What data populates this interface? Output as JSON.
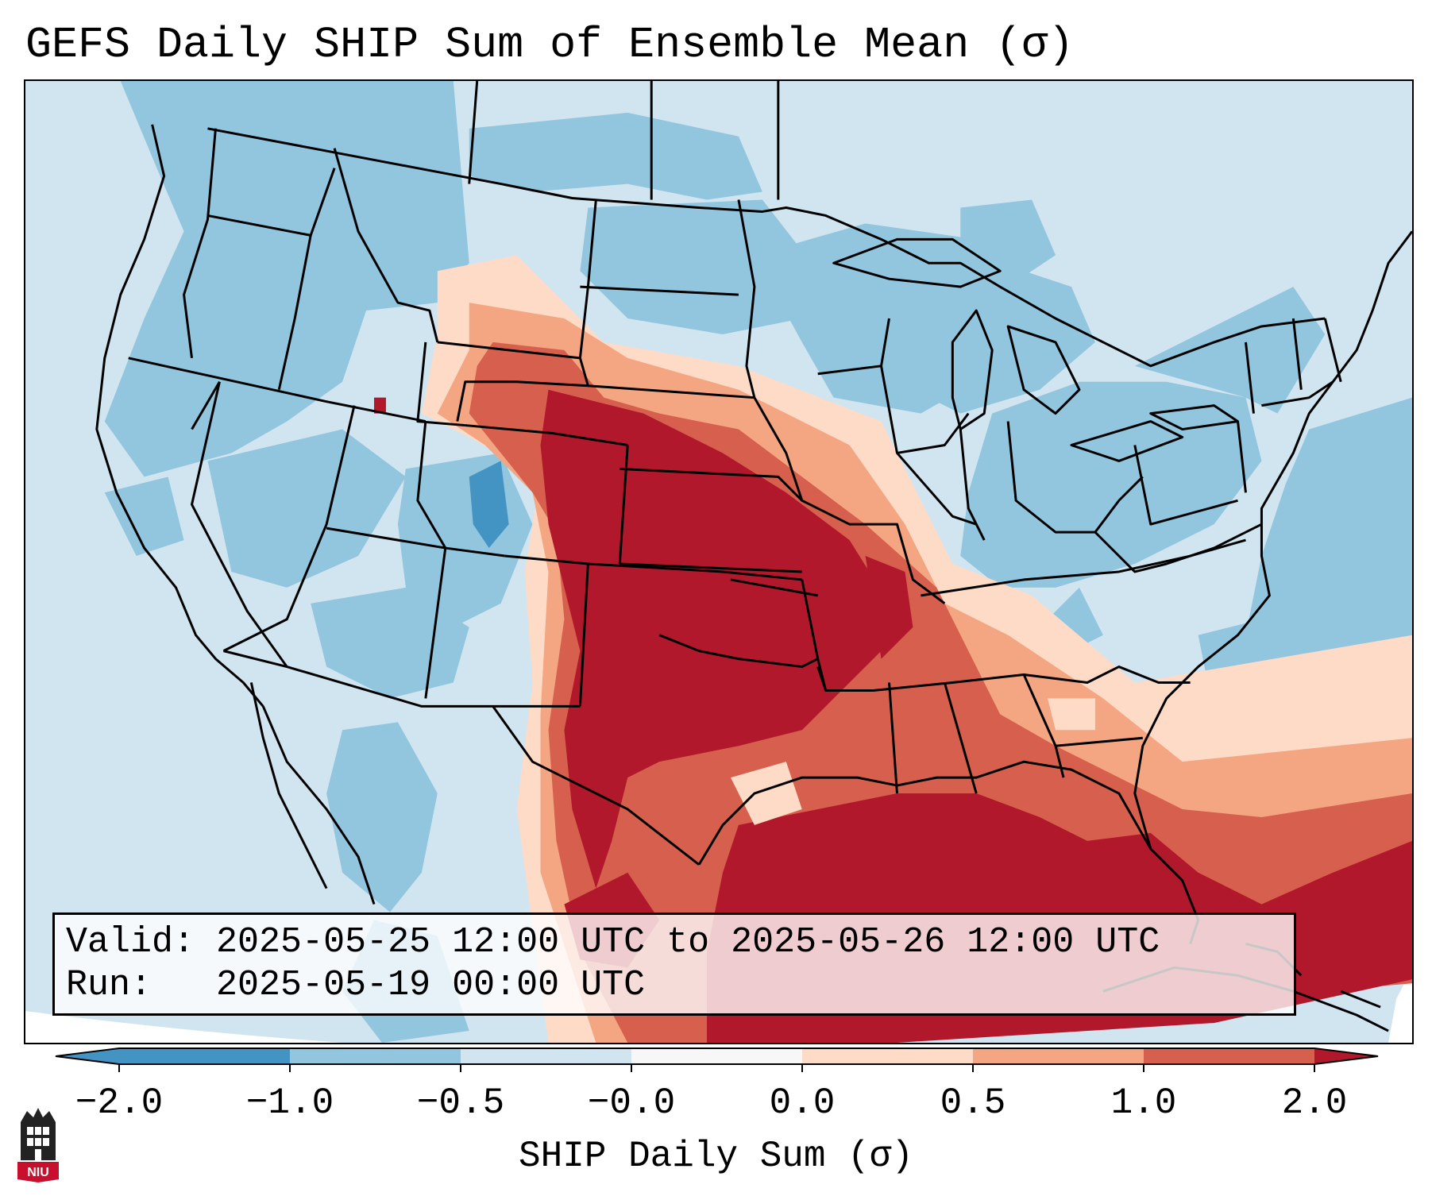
{
  "title": "GEFS Daily SHIP Sum of Ensemble Mean (σ)",
  "valid_label": "Valid:",
  "valid_value": "2025-05-25 12:00 UTC to 2025-05-26 12:00 UTC",
  "run_label": "Run:",
  "run_value": "2025-05-19 00:00 UTC",
  "colorbar": {
    "label": "SHIP Daily Sum (σ)",
    "ticks": [
      "−2.0",
      "−1.0",
      "−0.5",
      "−0.0",
      "0.0",
      "0.5",
      "1.0",
      "2.0"
    ],
    "colors": {
      "below": "#4393c3",
      "bins": [
        "#4393c3",
        "#92c5de",
        "#d1e5f0",
        "#f7f7f7",
        "#fddbc7",
        "#f4a582",
        "#d6604d"
      ],
      "above": "#b2182b"
    }
  },
  "logo": {
    "text": "NIU",
    "accent": "#c8102e"
  }
}
